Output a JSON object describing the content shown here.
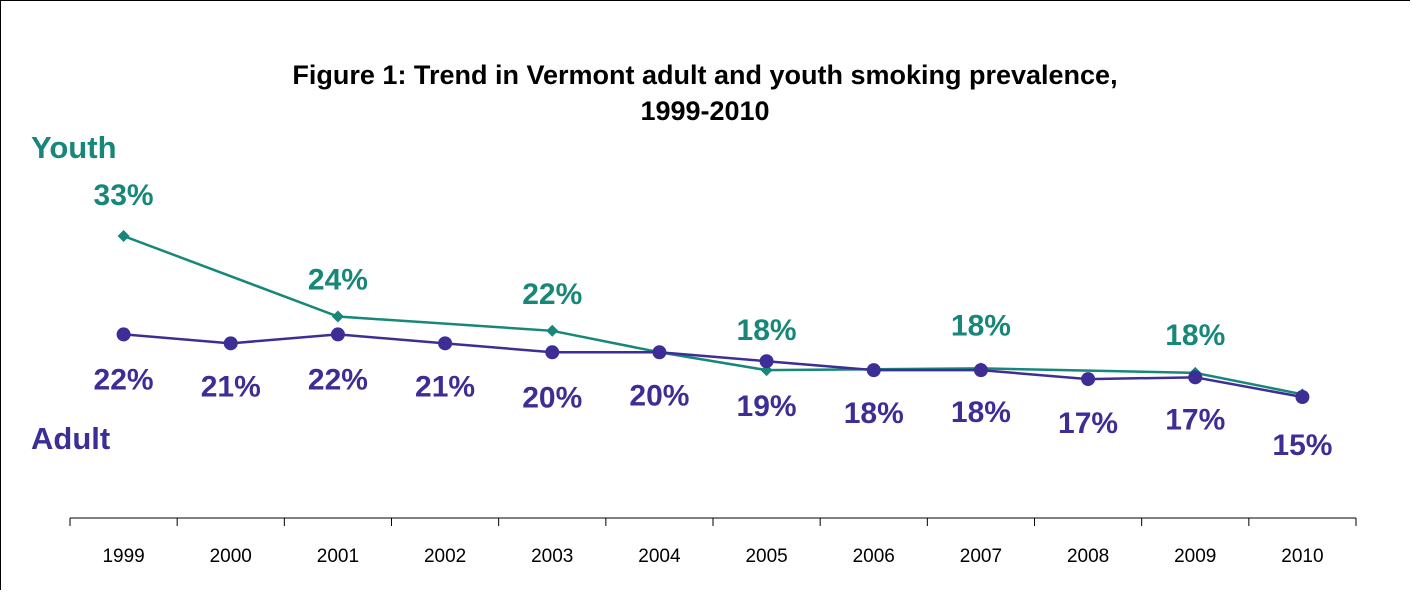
{
  "colors": {
    "youth": "#17877A",
    "adult": "#3D2E96",
    "axis": "#000000"
  },
  "chart_data": {
    "type": "line",
    "title": "Figure 1: Trend in Vermont adult and youth smoking prevalence,",
    "title_line2": "1999-2010",
    "x": [
      "1999",
      "2000",
      "2001",
      "2002",
      "2003",
      "2004",
      "2005",
      "2006",
      "2007",
      "2008",
      "2009",
      "2010"
    ],
    "grid": false,
    "series": [
      {
        "name": "Youth",
        "key": "youth",
        "marker": "diamond",
        "points": [
          {
            "x": "1999",
            "y": 33,
            "label": "33%"
          },
          {
            "x": "2001",
            "y": 24,
            "label": "24%"
          },
          {
            "x": "2003",
            "y": 22.4,
            "label": "22%"
          },
          {
            "x": "2004",
            "y": 20,
            "label": ""
          },
          {
            "x": "2005",
            "y": 18,
            "label": "18%"
          },
          {
            "x": "2007",
            "y": 18.2,
            "label": "18%"
          },
          {
            "x": "2009",
            "y": 17.7,
            "label": "18%"
          },
          {
            "x": "2010",
            "y": 15.3,
            "label": ""
          }
        ]
      },
      {
        "name": "Adult",
        "key": "adult",
        "marker": "circle",
        "points": [
          {
            "x": "1999",
            "y": 22,
            "label": "22%"
          },
          {
            "x": "2000",
            "y": 21,
            "label": "21%"
          },
          {
            "x": "2001",
            "y": 22,
            "label": "22%"
          },
          {
            "x": "2002",
            "y": 21,
            "label": "21%"
          },
          {
            "x": "2003",
            "y": 20,
            "label": "20%"
          },
          {
            "x": "2004",
            "y": 20,
            "label": "20%"
          },
          {
            "x": "2005",
            "y": 19,
            "label": "19%"
          },
          {
            "x": "2006",
            "y": 18,
            "label": "18%"
          },
          {
            "x": "2007",
            "y": 18,
            "label": "18%"
          },
          {
            "x": "2008",
            "y": 17,
            "label": "17%"
          },
          {
            "x": "2009",
            "y": 17.2,
            "label": "17%"
          },
          {
            "x": "2010",
            "y": 15,
            "label": "15%"
          }
        ]
      }
    ]
  }
}
